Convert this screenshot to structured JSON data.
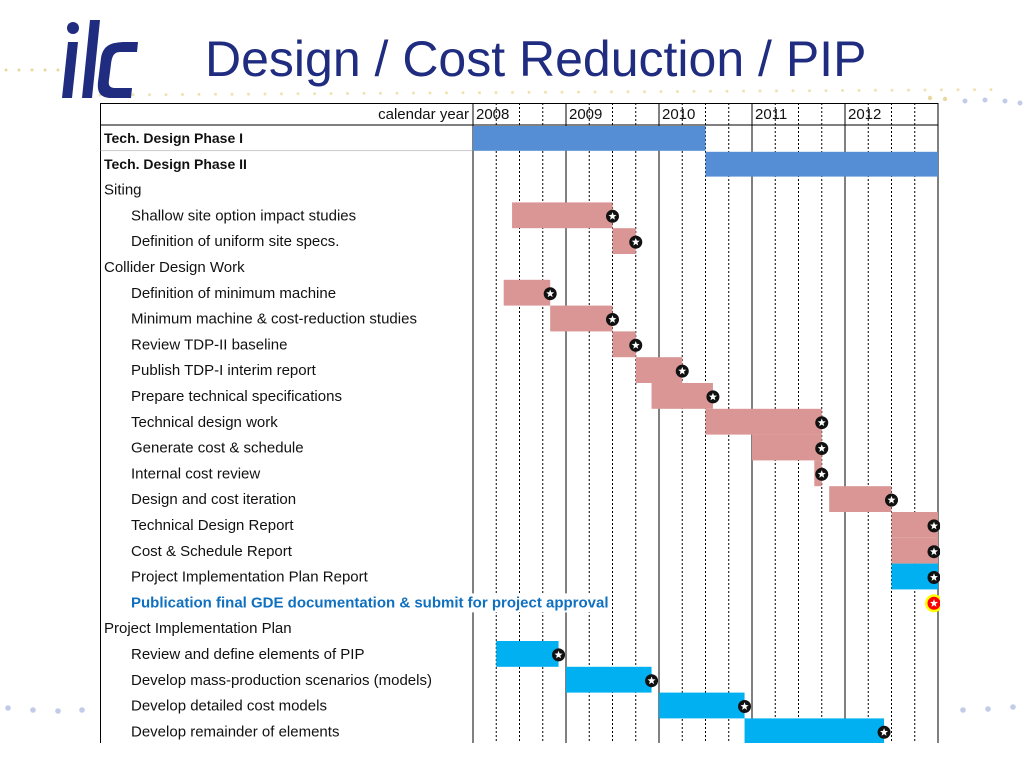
{
  "slide": {
    "title": "Design / Cost Reduction / PIP",
    "logo_text": "ilc"
  },
  "colors": {
    "title": "#1f2c80",
    "phase_bar": "#558ed5",
    "task_bar": "#d99694",
    "pip_bar": "#00b0f0",
    "milestone": "#111111",
    "final_milestone_ring": "#ffff00",
    "final_milestone_fill": "#ff0000",
    "highlight_text": "#1070c0"
  },
  "chart_data": {
    "type": "gantt",
    "header_label": "calendar year",
    "years": [
      "2008",
      "2009",
      "2010",
      "2011",
      "2012"
    ],
    "x_range": [
      2008.0,
      2013.0
    ],
    "grid": "quarter lines (dotted)",
    "tasks": [
      {
        "label": "Tech. Design Phase I",
        "style": "bold",
        "start": 2008.0,
        "end": 2010.5,
        "bar": "phase",
        "milestone": null
      },
      {
        "label": "Tech. Design Phase II",
        "style": "bold",
        "start": 2010.5,
        "end": 2013.0,
        "bar": "phase",
        "milestone": null
      },
      {
        "label": "Siting",
        "style": "section",
        "start": null,
        "end": null,
        "bar": null,
        "milestone": null
      },
      {
        "label": "Shallow site option impact studies",
        "style": "task",
        "start": 2008.42,
        "end": 2009.5,
        "bar": "task",
        "milestone": 2009.5
      },
      {
        "label": "Definition of uniform site specs.",
        "style": "task",
        "start": 2009.5,
        "end": 2009.75,
        "bar": "task",
        "milestone": 2009.75
      },
      {
        "label": "Collider Design Work",
        "style": "section",
        "start": null,
        "end": null,
        "bar": null,
        "milestone": null
      },
      {
        "label": "Definition of minimum machine",
        "style": "task",
        "start": 2008.33,
        "end": 2008.83,
        "bar": "task",
        "milestone": 2008.83
      },
      {
        "label": "Minimum machine & cost-reduction studies",
        "style": "task",
        "start": 2008.83,
        "end": 2009.5,
        "bar": "task",
        "milestone": 2009.5
      },
      {
        "label": "Review TDP-II baseline",
        "style": "task",
        "start": 2009.5,
        "end": 2009.75,
        "bar": "task",
        "milestone": 2009.75
      },
      {
        "label": "Publish TDP-I interim report",
        "style": "task",
        "start": 2009.75,
        "end": 2010.25,
        "bar": "task",
        "milestone": 2010.25
      },
      {
        "label": "Prepare technical specifications",
        "style": "task",
        "start": 2009.92,
        "end": 2010.58,
        "bar": "task",
        "milestone": 2010.58
      },
      {
        "label": "Technical design work",
        "style": "task",
        "start": 2010.5,
        "end": 2011.75,
        "bar": "task",
        "milestone": 2011.75
      },
      {
        "label": "Generate cost & schedule",
        "style": "task",
        "start": 2011.0,
        "end": 2011.75,
        "bar": "task",
        "milestone": 2011.75
      },
      {
        "label": "Internal cost review",
        "style": "task",
        "start": 2011.67,
        "end": 2011.75,
        "bar": "task",
        "milestone": 2011.75
      },
      {
        "label": "Design and cost iteration",
        "style": "task",
        "start": 2011.83,
        "end": 2012.5,
        "bar": "task",
        "milestone": 2012.5
      },
      {
        "label": "Technical Design Report",
        "style": "task",
        "start": 2012.5,
        "end": 2013.0,
        "bar": "task",
        "milestone": 2013.0
      },
      {
        "label": "Cost & Schedule Report",
        "style": "task",
        "start": 2012.5,
        "end": 2013.0,
        "bar": "task",
        "milestone": 2013.0
      },
      {
        "label": "Project Implementation Plan Report",
        "style": "task",
        "start": 2012.5,
        "end": 2013.0,
        "bar": "pip",
        "milestone": 2013.0
      },
      {
        "label": "Publication final GDE documentation & submit for project approval",
        "style": "highlight",
        "start": null,
        "end": null,
        "bar": null,
        "milestone": 2013.0,
        "milestone_style": "final"
      },
      {
        "label": "Project Implementation Plan",
        "style": "section",
        "start": null,
        "end": null,
        "bar": null,
        "milestone": null
      },
      {
        "label": "Review and define elements of PIP",
        "style": "task",
        "start": 2008.25,
        "end": 2008.92,
        "bar": "pip",
        "milestone": 2008.92
      },
      {
        "label": "Develop mass-production scenarios (models)",
        "style": "task",
        "start": 2009.0,
        "end": 2009.92,
        "bar": "pip",
        "milestone": 2009.92
      },
      {
        "label": "Develop detailed cost models",
        "style": "task",
        "start": 2010.0,
        "end": 2010.92,
        "bar": "pip",
        "milestone": 2010.92
      },
      {
        "label": "Develop remainder of elements",
        "style": "task",
        "start": 2010.92,
        "end": 2012.42,
        "bar": "pip",
        "milestone": 2012.42
      }
    ]
  }
}
